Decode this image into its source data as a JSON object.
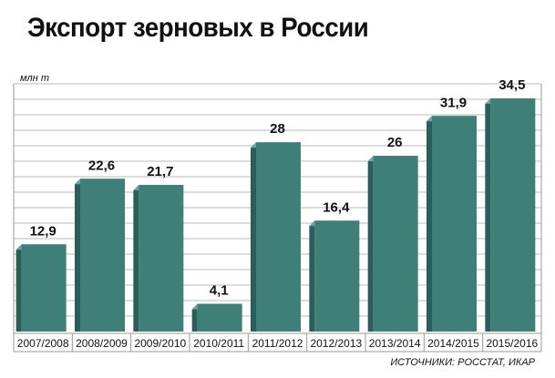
{
  "title": "Экспорт зерновых в России",
  "source": "ИСТОЧНИКИ: РОССТАТ, ИКАР",
  "colors": {
    "bar_front": "#3e7f78",
    "bar_side": "#2a5f59",
    "bar_top": "#6aa69e",
    "grid": "#b8b8b8",
    "frame": "#9a9a9a"
  },
  "chart_data": {
    "type": "bar",
    "ylabel": "млн т",
    "categories": [
      "2007/2008",
      "2008/2009",
      "2009/2010",
      "2010/2011",
      "2011/2012",
      "2012/2013",
      "2013/2014",
      "2014/2015",
      "2015/2016"
    ],
    "values": [
      12.9,
      22.6,
      21.7,
      4.1,
      28,
      16.4,
      26,
      31.9,
      34.5
    ],
    "value_labels": [
      "12,9",
      "22,6",
      "21,7",
      "4,1",
      "28",
      "16,4",
      "26",
      "31,9",
      "34,5"
    ],
    "ylim": [
      0,
      35
    ],
    "grid": true,
    "legend": "none"
  }
}
